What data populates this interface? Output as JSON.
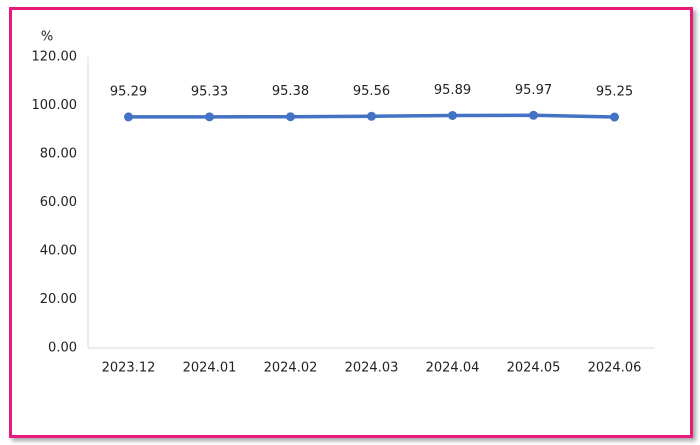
{
  "chart_data": {
    "type": "line",
    "ylabel": "%",
    "categories": [
      "2023.12",
      "2024.01",
      "2024.02",
      "2024.03",
      "2024.04",
      "2024.05",
      "2024.06"
    ],
    "values": [
      95.29,
      95.33,
      95.38,
      95.56,
      95.89,
      95.97,
      95.25
    ],
    "color": "#4472c4",
    "ylim": [
      0,
      120
    ],
    "yticks": [
      {
        "value": 0,
        "label": "0.00"
      },
      {
        "value": 20,
        "label": "20.00"
      },
      {
        "value": 40,
        "label": "40.00"
      },
      {
        "value": 60,
        "label": "60.00"
      },
      {
        "value": 80,
        "label": "80.00"
      },
      {
        "value": 100,
        "label": "100.00"
      },
      {
        "value": 120,
        "label": "120.00"
      }
    ],
    "grid": false
  }
}
